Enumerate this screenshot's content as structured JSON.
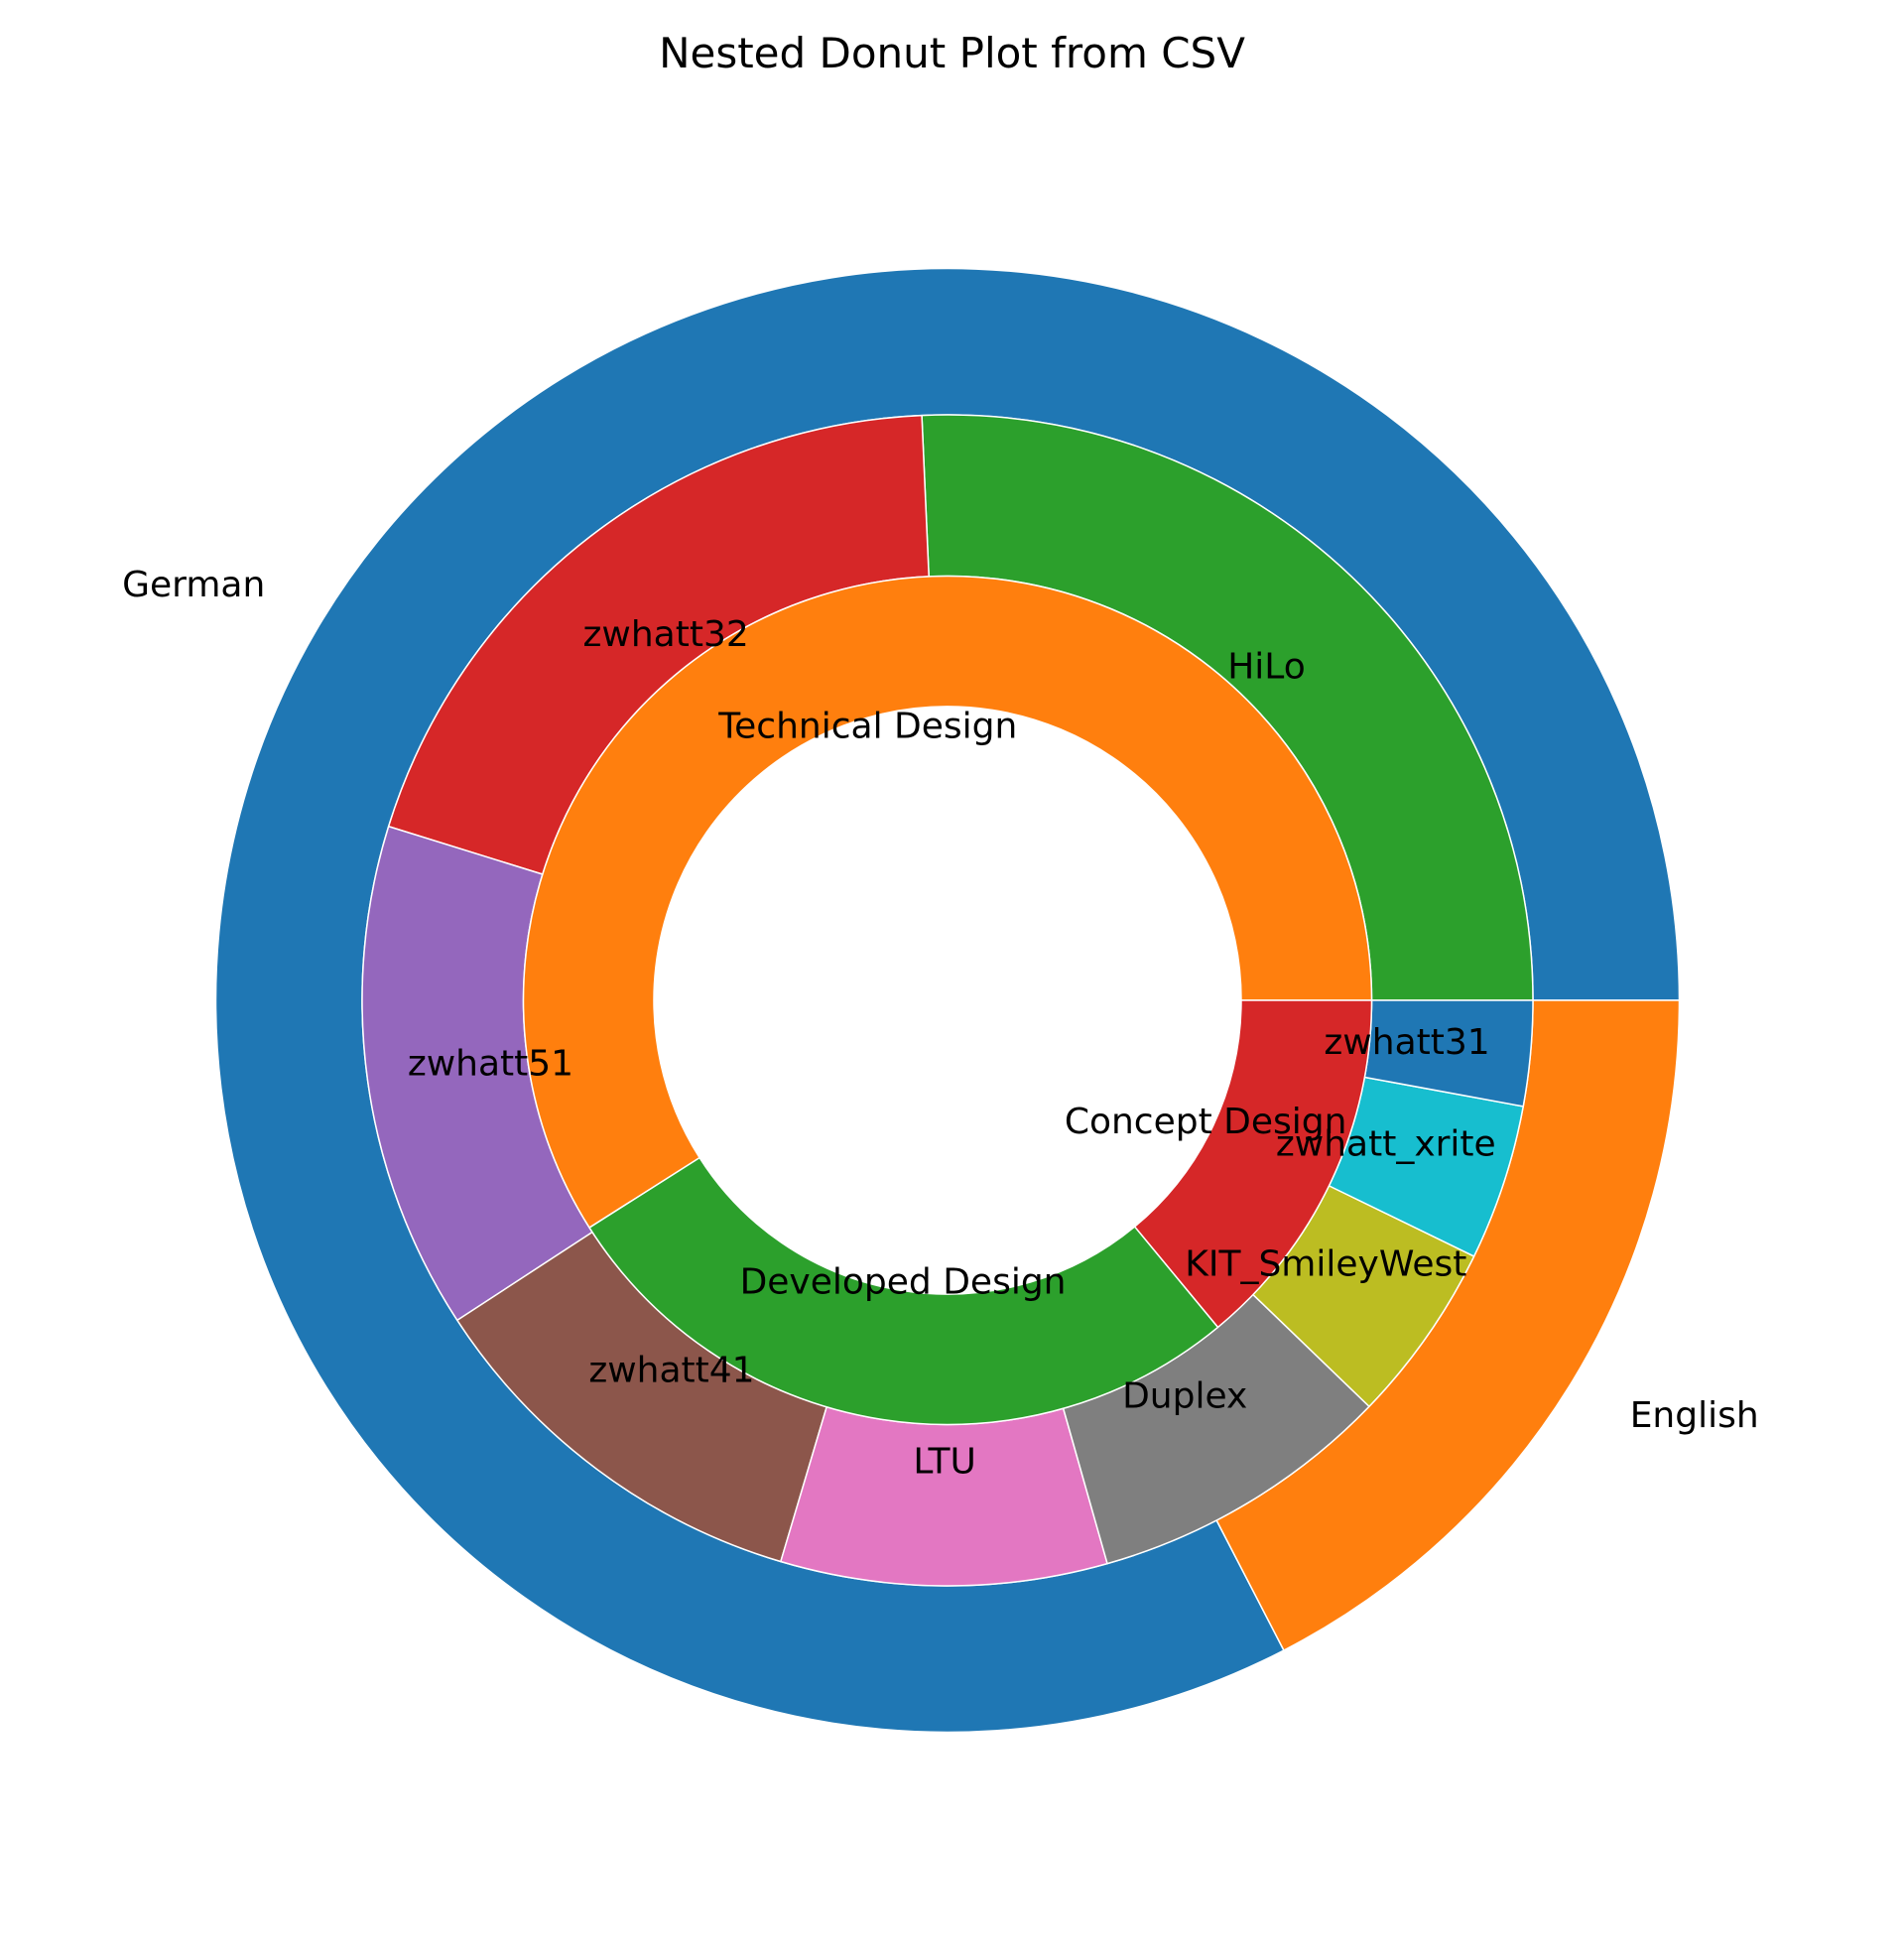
{
  "chart_data": {
    "type": "pie",
    "subtype": "nested-donut",
    "title": "Nested Donut Plot from CSV",
    "start_angle_deg": 0,
    "direction": "counterclockwise",
    "rings": [
      {
        "level": "outer",
        "labels_outside": true,
        "slices": [
          {
            "label": "German",
            "value": 82.6,
            "color": "#1f77b4"
          },
          {
            "label": "English",
            "value": 17.4,
            "color": "#ff7f0e"
          }
        ]
      },
      {
        "level": "middle",
        "slices": [
          {
            "label": "HiLo",
            "value": 25.7,
            "color": "#2ca02c"
          },
          {
            "label": "zwhatt32",
            "value": 19.5,
            "color": "#d62728"
          },
          {
            "label": "zwhatt51",
            "value": 14.0,
            "color": "#9467bd"
          },
          {
            "label": "zwhatt41",
            "value": 11.2,
            "color": "#8c564b"
          },
          {
            "label": "LTU",
            "value": 9.0,
            "color": "#e377c2"
          },
          {
            "label": "Duplex",
            "value": 8.4,
            "color": "#7f7f7f"
          },
          {
            "label": "KIT_SmileyWest",
            "value": 5.0,
            "color": "#bcbd22"
          },
          {
            "label": "zwhatt_xrite",
            "value": 4.3,
            "color": "#17becf"
          },
          {
            "label": "zwhatt31",
            "value": 2.9,
            "color": "#1f77b4"
          }
        ]
      },
      {
        "level": "inner",
        "slices": [
          {
            "label": "Technical Design",
            "value": 59.0,
            "color": "#ff7f0e"
          },
          {
            "label": "Developed Design",
            "value": 27.0,
            "color": "#2ca02c"
          },
          {
            "label": "Concept Design",
            "value": 14.0,
            "color": "#d62728"
          }
        ]
      }
    ]
  }
}
